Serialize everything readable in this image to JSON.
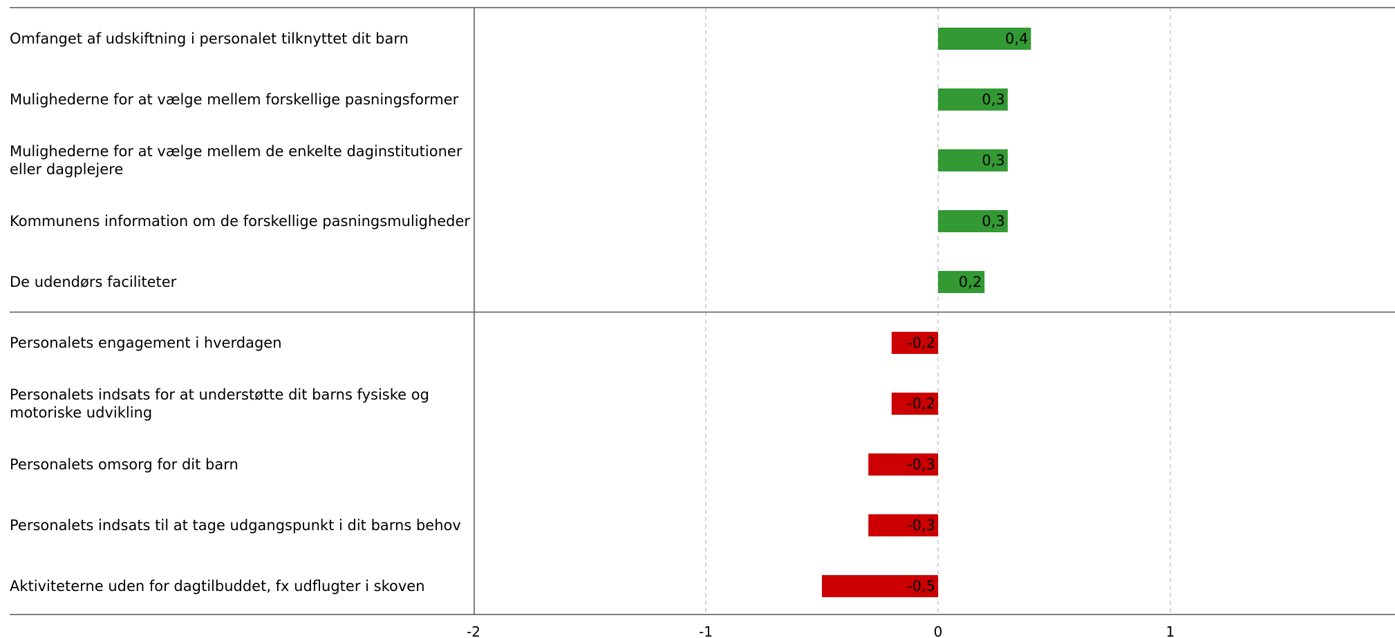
{
  "chart_data": {
    "type": "bar",
    "orientation": "horizontal",
    "categories": [
      "Omfanget af udskiftning i personalet tilknyttet dit barn",
      "Mulighederne for at vælge mellem forskellige pasningsformer",
      "Mulighederne for at vælge mellem de enkelte daginstitutioner eller dagplejere",
      "Kommunens information om de forskellige pasningsmuligheder",
      "De udendørs faciliteter",
      "Personalets engagement i hverdagen",
      "Personalets indsats for at understøtte dit barns fysiske og motoriske udvikling",
      "Personalets omsorg for dit barn",
      "Personalets indsats til at tage udgangspunkt i dit barns behov",
      "Aktiviteterne uden for dagtilbuddet, fx udflugter i skoven"
    ],
    "values": [
      0.4,
      0.3,
      0.3,
      0.3,
      0.2,
      -0.2,
      -0.2,
      -0.3,
      -0.3,
      -0.5
    ],
    "value_labels": [
      "0,4",
      "0,3",
      "0,3",
      "0,3",
      "0,2",
      "-0,2",
      "-0,2",
      "-0,3",
      "-0,3",
      "-0,5"
    ],
    "groups": [
      {
        "name": "positive",
        "count": 5,
        "color": "#339933"
      },
      {
        "name": "negative",
        "count": 5,
        "color": "#cc0000"
      }
    ],
    "xlim": [
      -2,
      2
    ],
    "xticks": [
      -2,
      -1,
      0,
      1
    ],
    "xtick_labels": [
      "-2",
      "-1",
      "0",
      "1"
    ],
    "grid": "vertical dashed",
    "title": "",
    "xlabel": "",
    "ylabel": ""
  }
}
